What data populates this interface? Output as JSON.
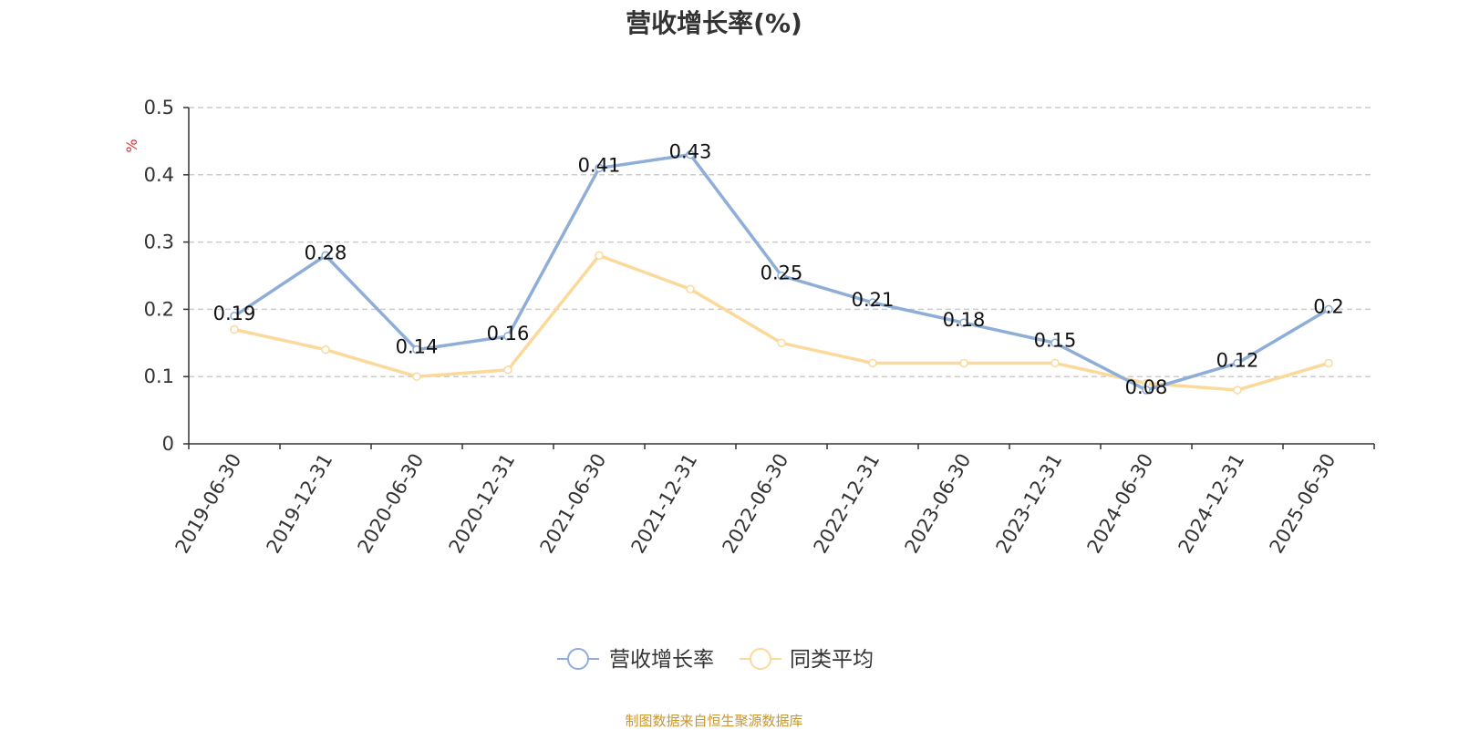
{
  "title": "营收增长率(%)",
  "source": "制图数据来自恒生聚源数据库",
  "colors": {
    "series1": "#8eaed8",
    "series2": "#fbd99a",
    "unit": "#e0302e",
    "source": "#c8962e"
  },
  "chart_data": {
    "type": "line",
    "title": "营收增长率(%)",
    "ylabel": "%",
    "ylim": [
      0,
      0.5
    ],
    "yticks": [
      "0",
      "0.1",
      "0.2",
      "0.3",
      "0.4",
      "0.5"
    ],
    "grid": true,
    "legend_position": "bottom",
    "categories": [
      "2019-06-30",
      "2019-12-31",
      "2020-06-30",
      "2020-12-31",
      "2021-06-30",
      "2021-12-31",
      "2022-06-30",
      "2022-12-31",
      "2023-06-30",
      "2023-12-31",
      "2024-06-30",
      "2024-12-31",
      "2025-06-30"
    ],
    "series": [
      {
        "name": "营收增长率",
        "values": [
          0.19,
          0.28,
          0.14,
          0.16,
          0.41,
          0.43,
          0.25,
          0.21,
          0.18,
          0.15,
          0.08,
          0.12,
          0.2
        ],
        "labels": [
          "0.19",
          "0.28",
          "0.14",
          "0.16",
          "0.41",
          "0.43",
          "0.25",
          "0.21",
          "0.18",
          "0.15",
          "0.08",
          "0.12",
          "0.2"
        ]
      },
      {
        "name": "同类平均",
        "values": [
          0.17,
          0.14,
          0.1,
          0.11,
          0.28,
          0.23,
          0.15,
          0.12,
          0.12,
          0.12,
          0.09,
          0.08,
          0.12
        ]
      }
    ]
  }
}
